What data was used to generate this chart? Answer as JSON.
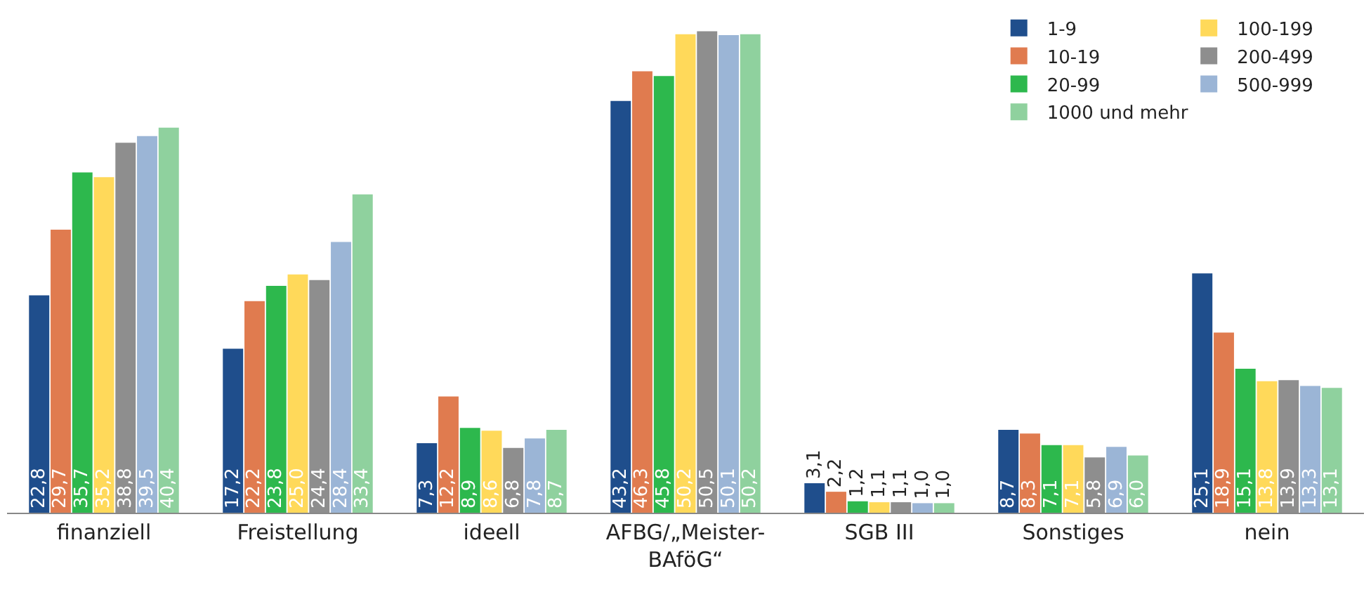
{
  "chart_data": {
    "type": "bar",
    "categories": [
      "finanziell",
      "Freistellung",
      "ideell",
      "AFBG/„Meister-BAföG“",
      "SGB III",
      "Sonstiges",
      "nein"
    ],
    "series": [
      {
        "name": "1-9",
        "color": "#1f4e8c",
        "values": [
          22.8,
          17.2,
          7.3,
          43.2,
          3.1,
          8.7,
          25.1
        ],
        "value_labels": [
          "22,8",
          "17,2",
          "7,3",
          "43,2",
          "3,1",
          "8,7",
          "25,1"
        ]
      },
      {
        "name": "10-19",
        "color": "#e07b4f",
        "values": [
          29.7,
          22.2,
          12.2,
          46.3,
          2.2,
          8.3,
          18.9
        ],
        "value_labels": [
          "29,7",
          "22,2",
          "12,2",
          "46,3",
          "2,2",
          "8,3",
          "18,9"
        ]
      },
      {
        "name": "20-99",
        "color": "#2db84d",
        "values": [
          35.7,
          23.8,
          8.9,
          45.8,
          1.2,
          7.1,
          15.1
        ],
        "value_labels": [
          "35,7",
          "23,8",
          "8,9",
          "45,8",
          "1,2",
          "7,1",
          "15,1"
        ]
      },
      {
        "name": "100-199",
        "color": "#ffd95a",
        "values": [
          35.2,
          25.0,
          8.6,
          50.2,
          1.1,
          7.1,
          13.8
        ],
        "value_labels": [
          "35,2",
          "25,0",
          "8,6",
          "50,2",
          "1,1",
          "7,1",
          "13,8"
        ]
      },
      {
        "name": "200-499",
        "color": "#8e8e8e",
        "values": [
          38.8,
          24.4,
          6.8,
          50.5,
          1.1,
          5.8,
          13.9
        ],
        "value_labels": [
          "38,8",
          "24,4",
          "6,8",
          "50,5",
          "1,1",
          "5,8",
          "13,9"
        ]
      },
      {
        "name": "500-999",
        "color": "#9bb5d6",
        "values": [
          39.5,
          28.4,
          7.8,
          50.1,
          1.0,
          6.9,
          13.3
        ],
        "value_labels": [
          "39,5",
          "28,4",
          "7,8",
          "50,1",
          "1,0",
          "6,9",
          "13,3"
        ]
      },
      {
        "name": "1000 und mehr",
        "color": "#8fd19e",
        "values": [
          40.4,
          33.4,
          8.7,
          50.2,
          1.0,
          6.0,
          13.1
        ],
        "value_labels": [
          "40,4",
          "33,4",
          "8,7",
          "50,2",
          "1,0",
          "6,0",
          "13,1"
        ]
      }
    ],
    "legend": "top right",
    "grid": false
  }
}
